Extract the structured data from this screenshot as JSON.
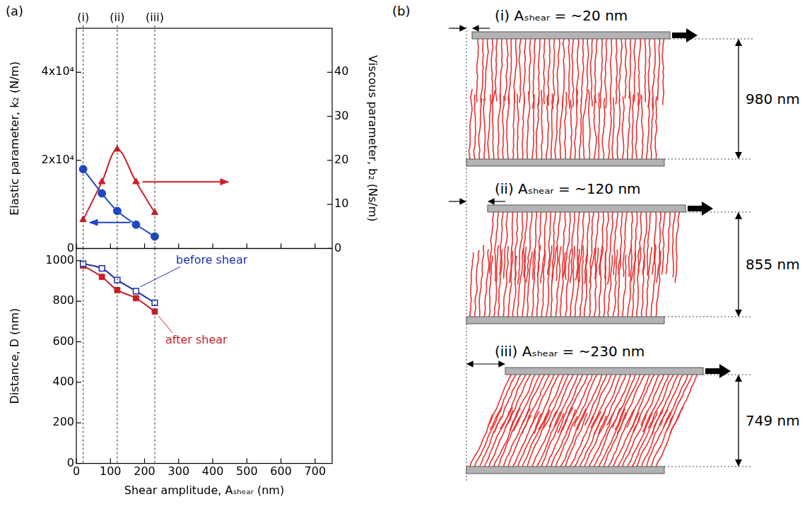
{
  "chart_data": [
    {
      "panel": "(a)",
      "type": "line",
      "y_label": "Elastic parameter, k₂ (N/m)",
      "y2_label": "Viscous parameter, b₂ (Ns/m)",
      "x": [
        20,
        75,
        120,
        175,
        230
      ],
      "series": [
        {
          "color": "#1f48c4",
          "marker": "circle",
          "values": [
            18000,
            12500,
            8500,
            5400,
            2700
          ]
        },
        {
          "color": "#c8202a",
          "marker": "triangle",
          "axis": "y2",
          "values": [
            6.5,
            15.1,
            22.5,
            15.1,
            8.1
          ]
        }
      ],
      "xlim": [
        0,
        750
      ],
      "xticks": [
        0,
        100,
        200,
        300,
        400,
        500,
        600,
        700
      ],
      "ylim": [
        0,
        50000
      ],
      "yticks": [
        0,
        {
          "value": 20000,
          "label": "2x10⁴"
        },
        {
          "value": 40000,
          "label": "4x10⁴"
        }
      ],
      "y2lim": [
        0,
        50
      ],
      "y2ticks": [
        0,
        10,
        20,
        30,
        40
      ],
      "tick_labels": "y",
      "grid": false,
      "annotations": [
        {
          "x": 20,
          "label": "(i)"
        },
        {
          "x": 120,
          "label": "(ii)"
        },
        {
          "x": 230,
          "label": "(iii)"
        }
      ]
    },
    {
      "type": "line",
      "x_label": "Shear amplitude, Aₛₕₑₐᵣ (nm)",
      "y_label": "Distance, D (nm)",
      "x": [
        20,
        75,
        120,
        175,
        230
      ],
      "series": [
        {
          "name": "before shear",
          "color": "#1a2fa8",
          "marker": "open_square",
          "values": [
            985,
            962,
            905,
            850,
            792
          ]
        },
        {
          "name": "after shear",
          "color": "#c8202a",
          "marker": "square",
          "values": [
            975,
            920,
            855,
            815,
            749
          ]
        }
      ],
      "xlim": [
        0,
        750
      ],
      "xticks": [
        0,
        100,
        200,
        300,
        400,
        500,
        600,
        700
      ],
      "ylim": [
        0,
        1060
      ],
      "yticks": [
        0,
        200,
        400,
        600,
        800,
        1000
      ],
      "grid": false,
      "annotations": [
        {
          "x": 20
        },
        {
          "x": 120
        },
        {
          "x": 230
        }
      ]
    }
  ],
  "diagram": {
    "panel": "(b)",
    "states": [
      {
        "label": "(i) Aₛₕₑₐᵣ = ~20 nm",
        "distance": "980 nm"
      },
      {
        "label": "(ii) Aₛₕₑₐᵣ = ~120 nm",
        "distance": "855 nm"
      },
      {
        "label": "(iii) Aₛₕₑₐᵣ = ~230 nm",
        "distance": "749 nm"
      }
    ]
  }
}
